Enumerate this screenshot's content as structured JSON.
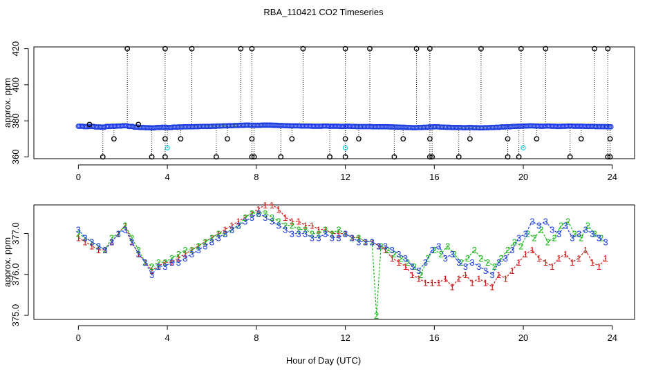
{
  "title": "RBA_110421  CO2 Timeseries",
  "xlabel": "Hour of Day (UTC)",
  "colors": {
    "series1": "#d01818",
    "series2": "#18b818",
    "series3": "#1f3fe0",
    "circles": "#1f3fe0",
    "extreme": "#000000",
    "low": "#22d6e0"
  },
  "chart_data": [
    {
      "type": "scatter",
      "ylabel": "approx. ppm",
      "xlim": [
        -2,
        25
      ],
      "ylim": [
        359,
        421
      ],
      "xticks": [
        "0",
        "4",
        "8",
        "12",
        "16",
        "20",
        "24"
      ],
      "yticks": [
        "360",
        "380",
        "400",
        "420"
      ],
      "grid": false,
      "series": [
        {
          "marker": "blue-circle",
          "x": [
            0.0,
            0.25,
            0.5,
            0.75,
            1.0,
            1.25,
            1.5,
            1.75,
            2.0,
            2.25,
            2.5,
            2.75,
            3.0,
            3.25,
            3.5,
            3.75,
            4.0,
            4.25,
            4.5,
            4.75,
            5.0,
            5.25,
            5.5,
            5.75,
            6.0,
            6.25,
            6.5,
            6.75,
            7.0,
            7.25,
            7.5,
            7.75,
            8.0,
            8.25,
            8.5,
            8.75,
            9.0,
            9.25,
            9.5,
            9.75,
            10.0,
            10.25,
            10.5,
            10.75,
            11.0,
            11.25,
            11.5,
            11.75,
            12.0,
            12.25,
            12.5,
            12.75,
            13.0,
            13.25,
            13.5,
            13.75,
            14.0,
            14.25,
            14.5,
            14.75,
            15.0,
            15.25,
            15.5,
            15.75,
            16.0,
            16.25,
            16.5,
            16.75,
            17.0,
            17.25,
            17.5,
            17.75,
            18.0,
            18.25,
            18.5,
            18.75,
            19.0,
            19.25,
            19.5,
            19.75,
            20.0,
            20.25,
            20.5,
            20.75,
            21.0,
            21.25,
            21.5,
            21.75,
            22.0,
            22.25,
            22.5,
            22.75,
            23.0,
            23.25,
            23.5,
            23.75
          ],
          "y": [
            377.0,
            376.8,
            376.9,
            376.6,
            376.5,
            376.9,
            377.0,
            377.1,
            377.3,
            376.9,
            376.5,
            376.3,
            376.2,
            376.1,
            376.3,
            376.4,
            376.3,
            376.5,
            376.6,
            376.7,
            376.7,
            376.8,
            376.9,
            376.9,
            377.0,
            377.1,
            377.2,
            377.3,
            377.4,
            377.5,
            377.6,
            377.5,
            377.5,
            377.6,
            377.6,
            377.5,
            377.4,
            377.3,
            377.2,
            377.2,
            377.1,
            377.1,
            377.0,
            377.0,
            377.1,
            377.0,
            377.0,
            376.9,
            377.0,
            376.9,
            376.8,
            376.8,
            376.8,
            376.7,
            376.7,
            376.7,
            376.6,
            376.5,
            376.4,
            376.3,
            376.2,
            376.3,
            376.4,
            376.6,
            376.7,
            376.5,
            376.4,
            376.3,
            376.3,
            376.2,
            376.3,
            376.2,
            376.1,
            376.2,
            376.3,
            376.4,
            376.6,
            376.7,
            376.9,
            377.0,
            377.1,
            377.2,
            377.1,
            377.0,
            377.1,
            377.0,
            376.9,
            377.0,
            377.1,
            377.0,
            377.0,
            376.9,
            376.9,
            376.8,
            376.8,
            376.7
          ]
        },
        {
          "marker": "black-circle-max",
          "x": [
            2.2,
            3.9,
            5.1,
            7.3,
            7.8,
            10.1,
            12.0,
            13.1,
            15.2,
            15.8,
            18.1,
            19.9,
            21.0,
            23.2,
            23.8
          ],
          "y": [
            420,
            420,
            420,
            420,
            420,
            420,
            420,
            420,
            420,
            420,
            420,
            420,
            420,
            420,
            420
          ]
        },
        {
          "marker": "black-circle-min",
          "x": [
            1.1,
            3.3,
            3.9,
            6.2,
            7.8,
            7.9,
            9.1,
            11.3,
            12.0,
            14.2,
            15.8,
            15.9,
            17.1,
            19.3,
            19.8,
            22.1,
            23.8,
            23.9
          ],
          "y": [
            360,
            360,
            360,
            360,
            360,
            360,
            360,
            360,
            360,
            360,
            360,
            360,
            360,
            360,
            360,
            360,
            360,
            360
          ]
        },
        {
          "marker": "black-circle-mid",
          "x": [
            0.5,
            1.6,
            2.7,
            3.9,
            4.6,
            6.7,
            7.8,
            9.6,
            12.0,
            12.6,
            14.6,
            15.8,
            17.6,
            19.3,
            20.6,
            22.6,
            23.9
          ],
          "y": [
            378,
            370,
            378,
            370,
            370,
            370,
            370,
            370,
            370,
            370,
            370,
            370,
            370,
            370,
            370,
            370,
            370
          ]
        },
        {
          "marker": "cyan-circle",
          "x": [
            4.0,
            12.0,
            20.0
          ],
          "y": [
            365,
            365,
            365
          ]
        }
      ]
    },
    {
      "type": "scatter",
      "ylabel": "approx. ppm",
      "xlim": [
        -2,
        25
      ],
      "ylim": [
        374.9,
        377.7
      ],
      "xticks": [
        "0",
        "4",
        "8",
        "12",
        "16",
        "20",
        "24"
      ],
      "yticks": [
        "375.0",
        "376.0",
        "377.0"
      ],
      "grid": false,
      "series": [
        {
          "marker": "1",
          "x": [
            0.0,
            0.3,
            0.6,
            0.9,
            1.2,
            1.5,
            1.8,
            2.1,
            2.4,
            2.7,
            3.0,
            3.3,
            3.6,
            3.9,
            4.2,
            4.5,
            4.8,
            5.1,
            5.4,
            5.7,
            6.0,
            6.3,
            6.6,
            6.9,
            7.2,
            7.5,
            7.8,
            8.1,
            8.4,
            8.7,
            9.0,
            9.3,
            9.6,
            9.9,
            10.2,
            10.5,
            10.8,
            11.1,
            11.4,
            11.7,
            12.0,
            12.3,
            12.6,
            12.9,
            13.2,
            13.5,
            13.8,
            14.1,
            14.4,
            14.7,
            15.0,
            15.3,
            15.6,
            15.9,
            16.2,
            16.5,
            16.8,
            17.1,
            17.4,
            17.7,
            18.0,
            18.3,
            18.6,
            18.9,
            19.2,
            19.5,
            19.8,
            20.1,
            20.4,
            20.7,
            21.0,
            21.3,
            21.6,
            21.9,
            22.2,
            22.5,
            22.8,
            23.1,
            23.4,
            23.7
          ],
          "y": [
            376.9,
            376.8,
            376.7,
            376.6,
            376.6,
            376.8,
            377.0,
            377.2,
            376.8,
            376.5,
            376.3,
            376.1,
            376.2,
            376.3,
            376.3,
            376.4,
            376.5,
            376.6,
            376.7,
            376.8,
            376.9,
            377.0,
            377.1,
            377.2,
            377.3,
            377.4,
            377.5,
            377.6,
            377.7,
            377.7,
            377.6,
            377.4,
            377.3,
            377.3,
            377.2,
            377.2,
            377.1,
            377.1,
            377.0,
            377.0,
            377.0,
            376.9,
            376.9,
            376.8,
            376.8,
            376.7,
            376.6,
            376.4,
            376.3,
            376.2,
            376.0,
            375.9,
            375.8,
            375.8,
            375.8,
            375.9,
            375.7,
            375.9,
            376.0,
            375.8,
            375.9,
            375.8,
            375.7,
            376.0,
            375.9,
            376.1,
            376.3,
            376.5,
            376.6,
            376.4,
            376.3,
            376.2,
            376.4,
            376.5,
            376.3,
            376.4,
            376.6,
            376.3,
            376.2,
            376.4
          ]
        },
        {
          "marker": "2",
          "x": [
            0.0,
            0.3,
            0.6,
            0.9,
            1.2,
            1.5,
            1.8,
            2.1,
            2.4,
            2.7,
            3.0,
            3.3,
            3.6,
            3.9,
            4.2,
            4.5,
            4.8,
            5.1,
            5.4,
            5.7,
            6.0,
            6.3,
            6.6,
            6.9,
            7.2,
            7.5,
            7.8,
            8.1,
            8.4,
            8.7,
            9.0,
            9.3,
            9.6,
            9.9,
            10.2,
            10.5,
            10.8,
            11.1,
            11.4,
            11.7,
            12.0,
            12.3,
            12.6,
            12.9,
            13.2,
            13.4,
            13.6,
            13.9,
            14.2,
            14.5,
            14.8,
            15.1,
            15.4,
            15.7,
            16.0,
            16.3,
            16.6,
            16.9,
            17.2,
            17.5,
            17.8,
            18.1,
            18.4,
            18.7,
            19.0,
            19.3,
            19.6,
            19.9,
            20.2,
            20.5,
            20.8,
            21.1,
            21.4,
            21.7,
            22.0,
            22.3,
            22.6,
            22.9,
            23.2,
            23.5
          ],
          "y": [
            377.0,
            376.9,
            376.8,
            376.7,
            376.6,
            376.9,
            377.0,
            377.2,
            376.9,
            376.6,
            376.3,
            376.2,
            376.3,
            376.3,
            376.4,
            376.5,
            376.6,
            376.6,
            376.7,
            376.8,
            376.9,
            377.0,
            377.0,
            377.1,
            377.2,
            377.4,
            377.5,
            377.5,
            377.5,
            377.4,
            377.3,
            377.2,
            377.2,
            377.1,
            377.1,
            377.0,
            377.0,
            377.1,
            377.0,
            377.1,
            377.0,
            376.9,
            376.9,
            376.8,
            376.8,
            375.0,
            376.7,
            376.6,
            376.5,
            376.4,
            376.3,
            376.2,
            376.0,
            376.4,
            376.6,
            376.5,
            376.7,
            376.5,
            376.3,
            376.4,
            376.6,
            376.4,
            376.3,
            376.2,
            376.4,
            376.6,
            376.8,
            376.7,
            377.0,
            376.9,
            377.1,
            376.8,
            376.9,
            377.2,
            377.3,
            377.0,
            376.9,
            377.2,
            377.0,
            376.9
          ]
        },
        {
          "marker": "3",
          "x": [
            0.0,
            0.3,
            0.6,
            0.9,
            1.2,
            1.5,
            1.8,
            2.1,
            2.4,
            2.7,
            3.0,
            3.3,
            3.6,
            3.9,
            4.2,
            4.5,
            4.8,
            5.1,
            5.4,
            5.7,
            6.0,
            6.3,
            6.6,
            6.9,
            7.2,
            7.5,
            7.8,
            8.1,
            8.4,
            8.7,
            9.0,
            9.3,
            9.6,
            9.9,
            10.2,
            10.5,
            10.8,
            11.1,
            11.4,
            11.7,
            12.0,
            12.3,
            12.6,
            12.9,
            13.2,
            13.5,
            13.8,
            14.1,
            14.4,
            14.7,
            15.0,
            15.3,
            15.6,
            15.9,
            16.2,
            16.5,
            16.8,
            17.1,
            17.4,
            17.7,
            18.0,
            18.3,
            18.6,
            18.9,
            19.2,
            19.5,
            19.8,
            20.1,
            20.4,
            20.7,
            21.0,
            21.3,
            21.6,
            21.9,
            22.2,
            22.5,
            22.8,
            23.1,
            23.4,
            23.7
          ],
          "y": [
            377.1,
            376.9,
            376.8,
            376.7,
            376.6,
            376.8,
            377.0,
            377.1,
            376.8,
            376.5,
            376.3,
            376.0,
            376.2,
            376.2,
            376.3,
            376.3,
            376.4,
            376.5,
            376.6,
            376.7,
            376.8,
            376.9,
            377.0,
            377.1,
            377.2,
            377.3,
            377.4,
            377.5,
            377.4,
            377.3,
            377.2,
            377.1,
            377.0,
            377.0,
            377.0,
            376.9,
            376.9,
            377.0,
            376.9,
            376.9,
            377.0,
            376.9,
            376.8,
            376.8,
            376.8,
            376.7,
            376.7,
            376.6,
            376.5,
            376.4,
            376.2,
            376.1,
            376.3,
            376.6,
            376.7,
            376.4,
            376.5,
            376.3,
            376.2,
            376.3,
            376.2,
            376.1,
            376.0,
            376.3,
            376.4,
            376.6,
            376.9,
            377.0,
            377.3,
            377.2,
            377.3,
            377.1,
            377.0,
            377.2,
            376.9,
            377.0,
            377.1,
            377.0,
            376.9,
            376.8
          ]
        }
      ]
    }
  ]
}
